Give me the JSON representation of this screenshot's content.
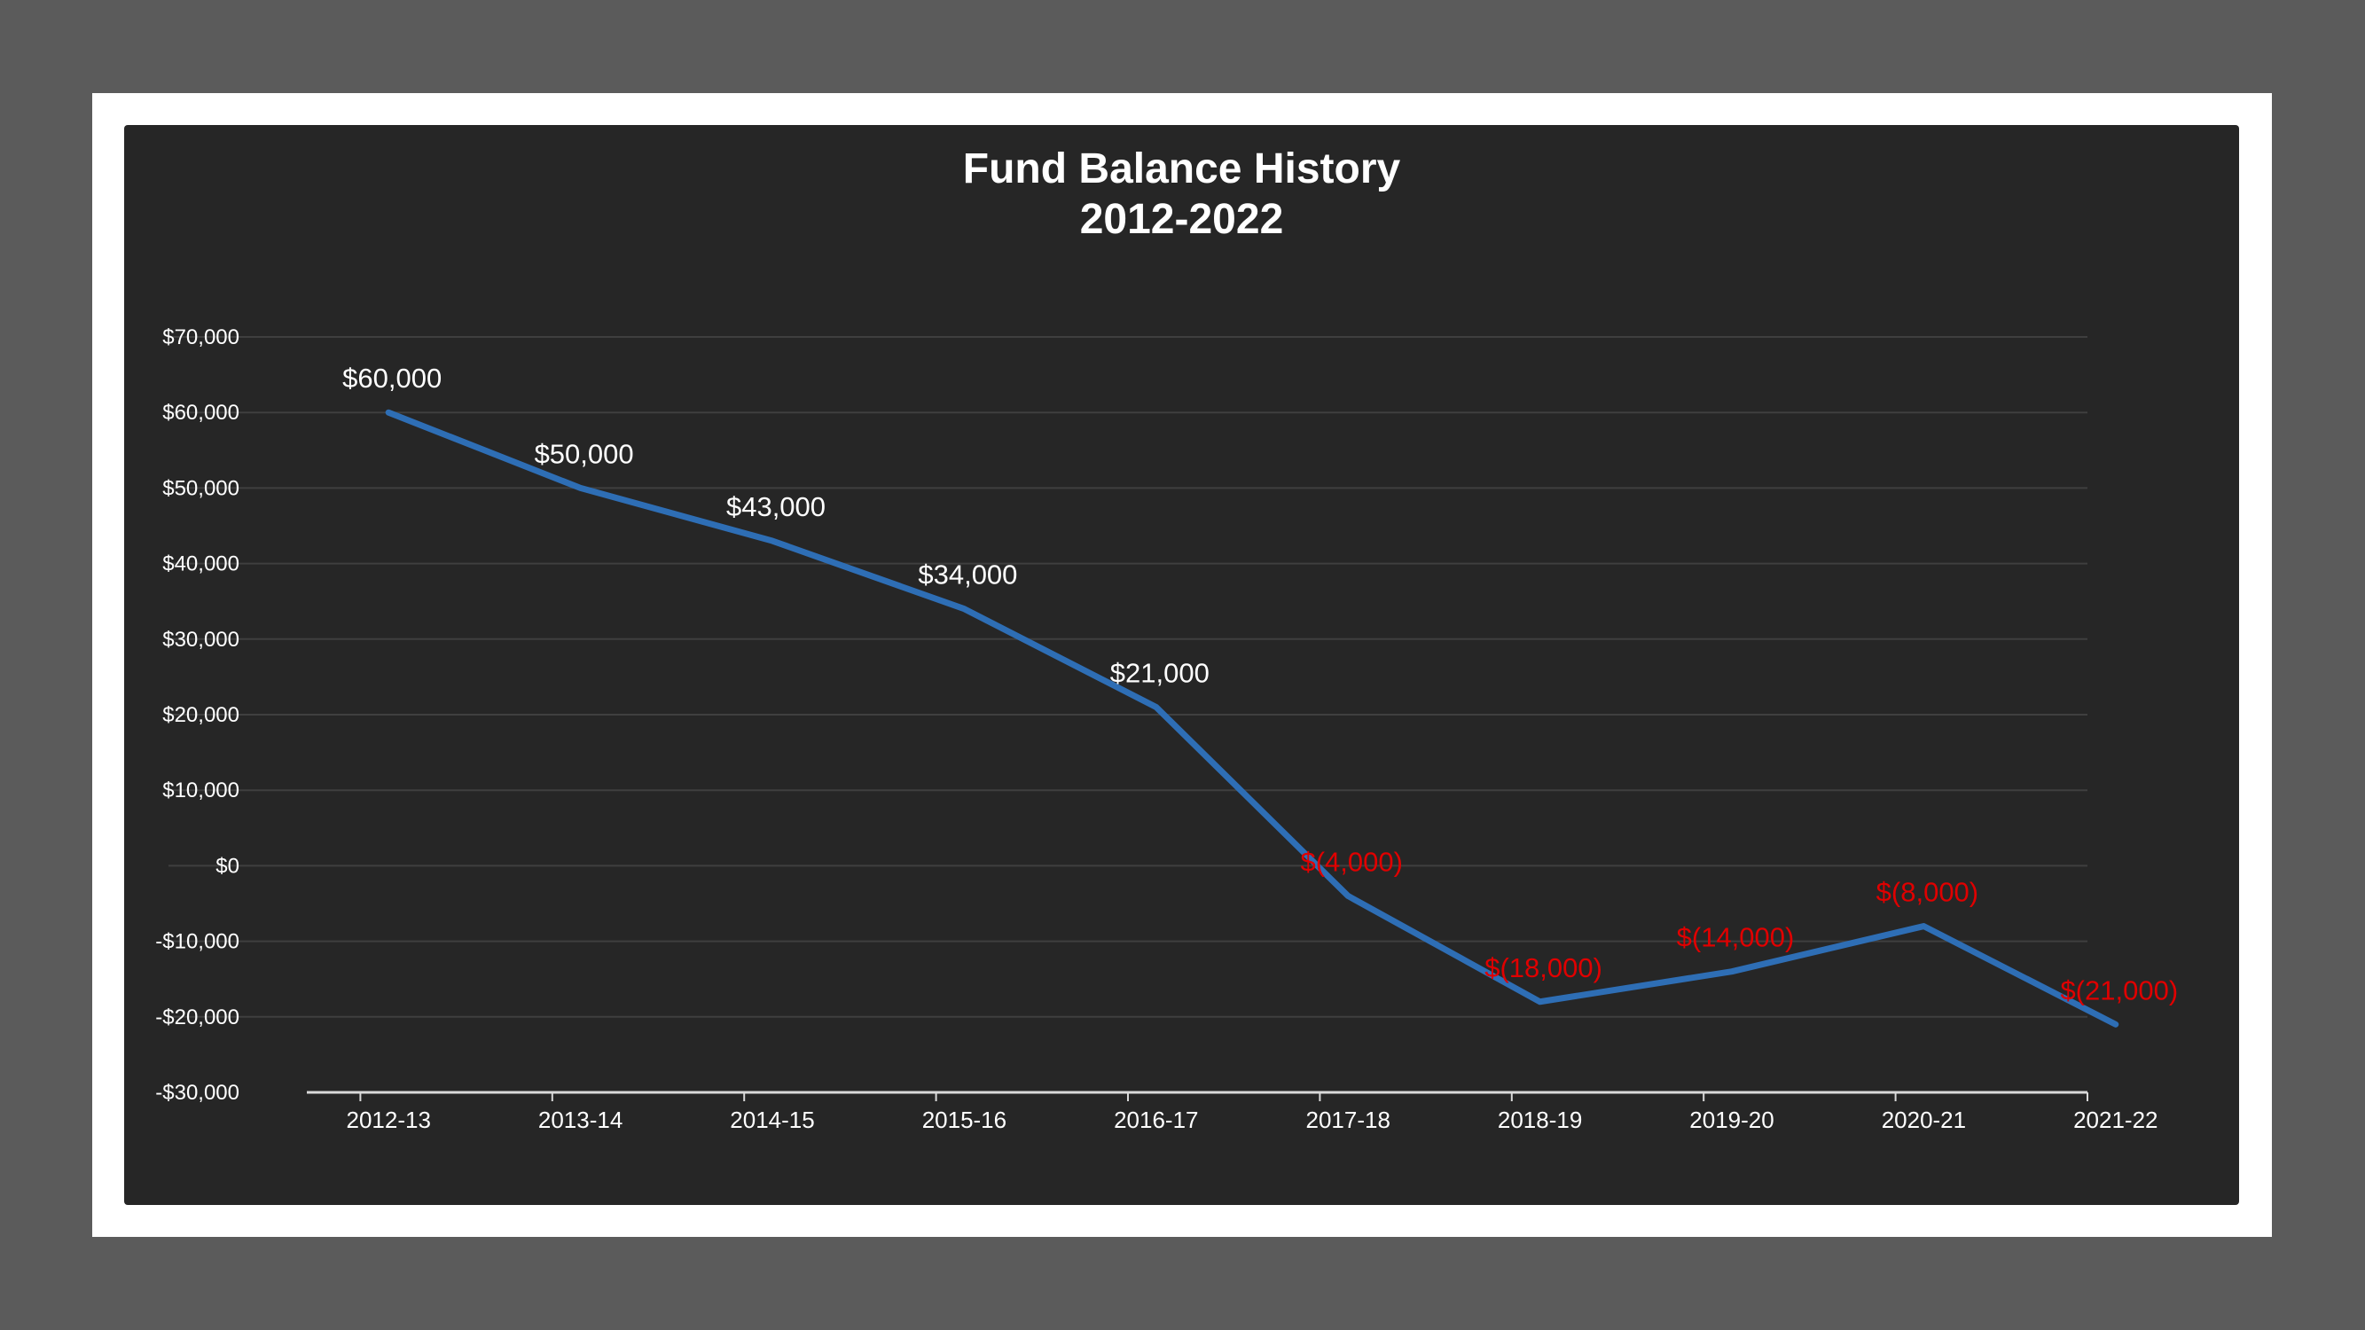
{
  "chart_data": {
    "type": "line",
    "title": "Fund Balance History",
    "subtitle": "2012-2022",
    "xlabel": "",
    "ylabel": "",
    "categories": [
      "2012-13",
      "2013-14",
      "2014-15",
      "2015-16",
      "2016-17",
      "2017-18",
      "2018-19",
      "2019-20",
      "2020-21",
      "2021-22"
    ],
    "series": [
      {
        "values": [
          60000,
          50000,
          43000,
          34000,
          21000,
          -4000,
          -18000,
          -14000,
          -8000,
          -21000
        ],
        "data_labels": [
          "$60,000",
          "$50,000",
          "$43,000",
          "$34,000",
          "$21,000",
          "$(4,000)",
          "$(18,000)",
          "$(14,000)",
          "$(8,000)",
          "$(21,000)"
        ],
        "color": "#2e6eb5"
      }
    ],
    "ylim": [
      -30000,
      70000
    ],
    "yticks": [
      70000,
      60000,
      50000,
      40000,
      30000,
      20000,
      10000,
      0,
      -10000,
      -20000,
      -30000
    ],
    "ytick_labels": [
      "$70,000",
      "$60,000",
      "$50,000",
      "$40,000",
      "$30,000",
      "$20,000",
      "$10,000",
      "$0",
      "-$10,000",
      "-$20,000",
      "-$30,000"
    ],
    "grid": true,
    "legend": "none",
    "colors": {
      "background": "#262626",
      "frame": "#ffffff",
      "outer": "#5b5b5b",
      "text": "#ffffff",
      "gridline": "#3f3f3f",
      "positive_label": "#ffffff",
      "negative_label": "#e00000"
    }
  }
}
